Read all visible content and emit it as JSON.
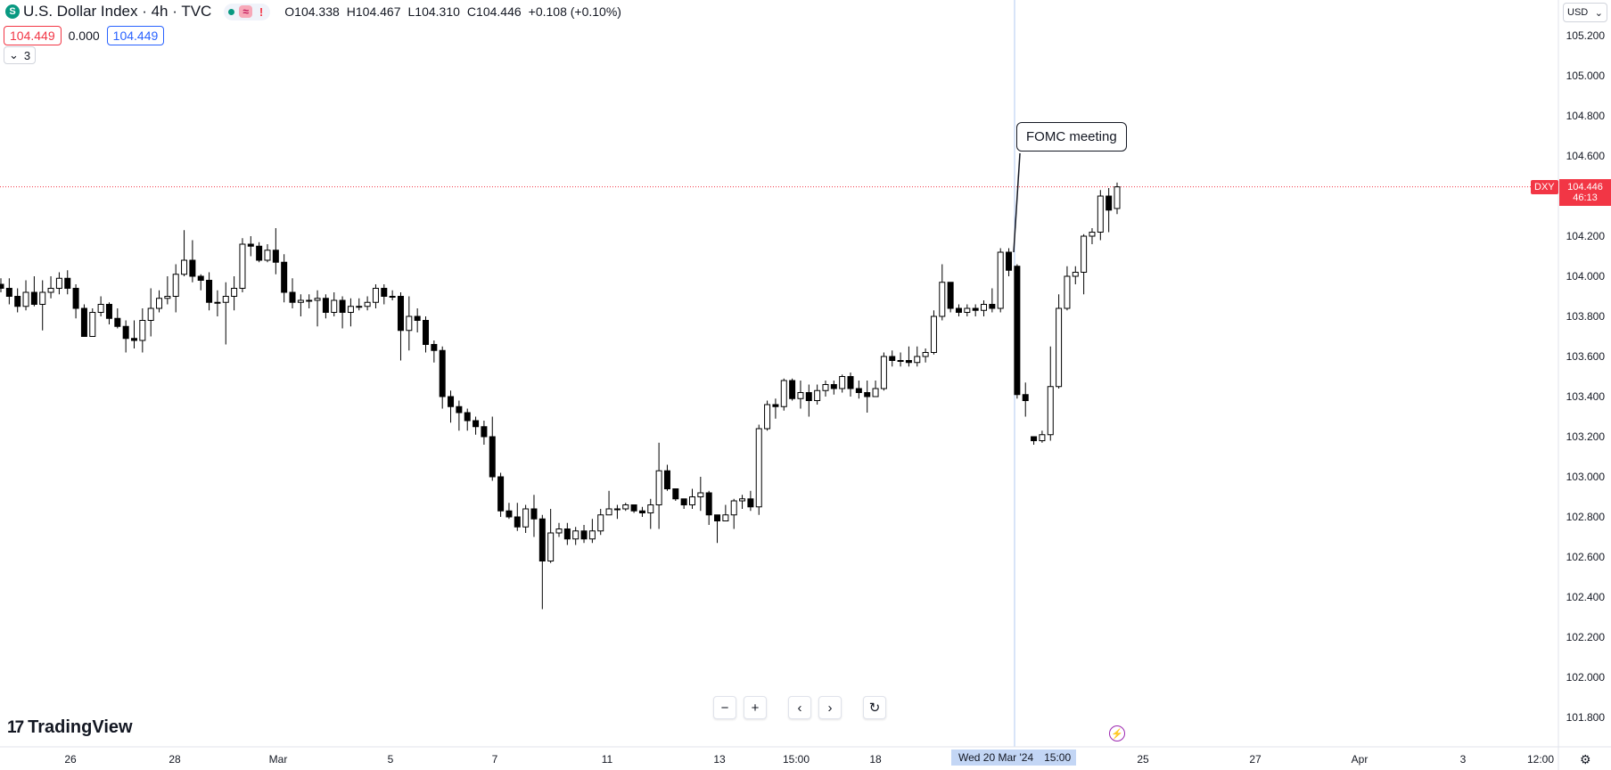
{
  "header": {
    "symbol_icon": "S",
    "title": "U.S. Dollar Index · 4h · TVC",
    "status_icons": [
      "green-dot-icon",
      "wave-icon",
      "exclamation-icon"
    ],
    "wave_glyph": "≈",
    "excl_glyph": "!",
    "ohlc": {
      "o_label": "O",
      "o": "104.338",
      "h_label": "H",
      "h": "104.467",
      "l_label": "L",
      "l": "104.310",
      "c_label": "C",
      "c": "104.446",
      "change": "+0.108 (+0.10%)"
    }
  },
  "price_boxes": {
    "sell": "104.449",
    "spread": "0.000",
    "buy": "104.449"
  },
  "indicators_toggle": {
    "count": "3"
  },
  "currency_select": {
    "value": "USD"
  },
  "annotation": {
    "text": "FOMC meeting"
  },
  "last_price": {
    "symbol": "DXY",
    "value": "104.446",
    "countdown": "46:13"
  },
  "crosshair": {
    "label": "Wed 20 Mar '24",
    "time_overlap": "15:00"
  },
  "branding": {
    "logo_text": "TradingView",
    "logo_mark": "17"
  },
  "navigation": {
    "zoom_out": "−",
    "zoom_in": "+",
    "scroll_left": "‹",
    "scroll_right": "›",
    "reset": "↻"
  },
  "colors": {
    "up_fill": "#ffffff",
    "down_fill": "#000000",
    "last_price_line": "#f23645",
    "crosshair": "#b2c9f0",
    "accent_blue": "#2962ff"
  },
  "chart_data": {
    "type": "candlestick",
    "ylim": [
      101.7,
      105.25
    ],
    "y_ticks": [
      "105.200",
      "105.000",
      "104.800",
      "104.600",
      "104.400",
      "104.200",
      "104.000",
      "103.800",
      "103.600",
      "103.400",
      "103.200",
      "103.000",
      "102.800",
      "102.600",
      "102.400",
      "102.200",
      "102.000",
      "101.800"
    ],
    "x_ticks": [
      "26",
      "28",
      "Mar",
      "5",
      "7",
      "11",
      "13",
      "15:00",
      "18",
      "Wed 20 Mar '24",
      "15:00",
      "25",
      "27",
      "Apr",
      "3",
      "12:00"
    ],
    "last_price": 104.446,
    "candles": [
      [
        103.96,
        103.94,
        103.99,
        103.92
      ],
      [
        103.94,
        103.9,
        103.99,
        103.86
      ],
      [
        103.9,
        103.85,
        103.94,
        103.82
      ],
      [
        103.85,
        103.92,
        103.98,
        103.83
      ],
      [
        103.92,
        103.86,
        104.0,
        103.85
      ],
      [
        103.86,
        103.92,
        103.98,
        103.73
      ],
      [
        103.92,
        103.94,
        104.0,
        103.89
      ],
      [
        103.94,
        103.99,
        104.02,
        103.91
      ],
      [
        103.99,
        103.94,
        104.03,
        103.91
      ],
      [
        103.94,
        103.84,
        103.96,
        103.79
      ],
      [
        103.84,
        103.7,
        103.86,
        103.7
      ],
      [
        103.7,
        103.82,
        103.84,
        103.7
      ],
      [
        103.82,
        103.86,
        103.9,
        103.8
      ],
      [
        103.86,
        103.79,
        103.87,
        103.76
      ],
      [
        103.79,
        103.75,
        103.84,
        103.74
      ],
      [
        103.75,
        103.69,
        103.78,
        103.62
      ],
      [
        103.69,
        103.68,
        103.78,
        103.64
      ],
      [
        103.68,
        103.78,
        103.84,
        103.62
      ],
      [
        103.78,
        103.84,
        103.94,
        103.7
      ],
      [
        103.84,
        103.89,
        103.93,
        103.82
      ],
      [
        103.89,
        103.9,
        104.0,
        103.86
      ],
      [
        103.9,
        104.01,
        104.06,
        103.82
      ],
      [
        104.01,
        104.08,
        104.23,
        104.0
      ],
      [
        104.08,
        104.0,
        104.18,
        103.97
      ],
      [
        104.0,
        103.98,
        104.01,
        103.93
      ],
      [
        103.98,
        103.87,
        104.02,
        103.83
      ],
      [
        103.87,
        103.87,
        103.93,
        103.8
      ],
      [
        103.87,
        103.9,
        103.97,
        103.66
      ],
      [
        103.9,
        103.94,
        104.0,
        103.83
      ],
      [
        103.94,
        104.16,
        104.19,
        103.92
      ],
      [
        104.16,
        104.15,
        104.2,
        104.1
      ],
      [
        104.15,
        104.08,
        104.17,
        104.07
      ],
      [
        104.08,
        104.13,
        104.16,
        104.07
      ],
      [
        104.13,
        104.07,
        104.24,
        104.01
      ],
      [
        104.07,
        103.92,
        104.11,
        103.87
      ],
      [
        103.92,
        103.87,
        103.99,
        103.84
      ],
      [
        103.87,
        103.88,
        103.91,
        103.8
      ],
      [
        103.88,
        103.88,
        103.91,
        103.84
      ],
      [
        103.88,
        103.89,
        103.93,
        103.75
      ],
      [
        103.89,
        103.82,
        103.91,
        103.79
      ],
      [
        103.82,
        103.88,
        103.92,
        103.8
      ],
      [
        103.88,
        103.82,
        103.9,
        103.74
      ],
      [
        103.82,
        103.85,
        103.89,
        103.75
      ],
      [
        103.85,
        103.85,
        103.89,
        103.83
      ],
      [
        103.85,
        103.87,
        103.9,
        103.83
      ],
      [
        103.87,
        103.94,
        103.96,
        103.84
      ],
      [
        103.94,
        103.9,
        103.96,
        103.86
      ],
      [
        103.9,
        103.9,
        103.93,
        103.88
      ],
      [
        103.9,
        103.73,
        103.92,
        103.58
      ],
      [
        103.73,
        103.8,
        103.9,
        103.63
      ],
      [
        103.8,
        103.78,
        103.84,
        103.72
      ],
      [
        103.78,
        103.66,
        103.8,
        103.62
      ],
      [
        103.66,
        103.63,
        103.68,
        103.57
      ],
      [
        103.63,
        103.4,
        103.65,
        103.34
      ],
      [
        103.4,
        103.35,
        103.43,
        103.27
      ],
      [
        103.35,
        103.32,
        103.38,
        103.23
      ],
      [
        103.32,
        103.28,
        103.34,
        103.23
      ],
      [
        103.28,
        103.25,
        103.3,
        103.21
      ],
      [
        103.25,
        103.2,
        103.28,
        103.16
      ],
      [
        103.2,
        103.0,
        103.3,
        102.98
      ],
      [
        103.0,
        102.83,
        103.02,
        102.8
      ],
      [
        102.83,
        102.8,
        102.87,
        102.79
      ],
      [
        102.8,
        102.75,
        102.87,
        102.73
      ],
      [
        102.75,
        102.84,
        102.86,
        102.72
      ],
      [
        102.84,
        102.79,
        102.91,
        102.7
      ],
      [
        102.79,
        102.58,
        102.81,
        102.34
      ],
      [
        102.58,
        102.72,
        102.84,
        102.57
      ],
      [
        102.72,
        102.74,
        102.77,
        102.7
      ],
      [
        102.74,
        102.69,
        102.77,
        102.66
      ],
      [
        102.69,
        102.73,
        102.75,
        102.66
      ],
      [
        102.73,
        102.69,
        102.76,
        102.67
      ],
      [
        102.69,
        102.73,
        102.79,
        102.67
      ],
      [
        102.73,
        102.81,
        102.84,
        102.71
      ],
      [
        102.81,
        102.84,
        102.93,
        102.82
      ],
      [
        102.84,
        102.84,
        102.86,
        102.79
      ],
      [
        102.84,
        102.86,
        102.87,
        102.83
      ],
      [
        102.86,
        102.83,
        102.86,
        102.82
      ],
      [
        102.83,
        102.82,
        102.85,
        102.8
      ],
      [
        102.82,
        102.86,
        102.89,
        102.74
      ],
      [
        102.86,
        103.03,
        103.17,
        102.74
      ],
      [
        103.03,
        102.94,
        103.06,
        102.93
      ],
      [
        102.94,
        102.89,
        102.94,
        102.88
      ],
      [
        102.89,
        102.86,
        102.89,
        102.84
      ],
      [
        102.86,
        102.9,
        102.94,
        102.84
      ],
      [
        102.9,
        102.92,
        103.0,
        102.83
      ],
      [
        102.92,
        102.81,
        102.93,
        102.76
      ],
      [
        102.81,
        102.78,
        102.81,
        102.67
      ],
      [
        102.78,
        102.81,
        102.86,
        102.79
      ],
      [
        102.81,
        102.88,
        102.89,
        102.74
      ],
      [
        102.88,
        102.89,
        102.91,
        102.84
      ],
      [
        102.89,
        102.85,
        102.93,
        102.83
      ],
      [
        102.85,
        103.24,
        103.26,
        102.81
      ],
      [
        103.24,
        103.36,
        103.38,
        103.23
      ],
      [
        103.36,
        103.35,
        103.39,
        103.29
      ],
      [
        103.35,
        103.48,
        103.49,
        103.33
      ],
      [
        103.48,
        103.39,
        103.49,
        103.38
      ],
      [
        103.39,
        103.42,
        103.48,
        103.34
      ],
      [
        103.42,
        103.38,
        103.46,
        103.3
      ],
      [
        103.38,
        103.43,
        103.46,
        103.36
      ],
      [
        103.43,
        103.46,
        103.48,
        103.4
      ],
      [
        103.46,
        103.44,
        103.48,
        103.41
      ],
      [
        103.44,
        103.5,
        103.51,
        103.42
      ],
      [
        103.5,
        103.44,
        103.52,
        103.4
      ],
      [
        103.44,
        103.42,
        103.48,
        103.39
      ],
      [
        103.42,
        103.4,
        103.48,
        103.32
      ],
      [
        103.4,
        103.44,
        103.48,
        103.4
      ],
      [
        103.44,
        103.6,
        103.62,
        103.43
      ],
      [
        103.6,
        103.58,
        103.63,
        103.55
      ],
      [
        103.58,
        103.58,
        103.62,
        103.55
      ],
      [
        103.58,
        103.57,
        103.65,
        103.55
      ],
      [
        103.57,
        103.6,
        103.65,
        103.55
      ],
      [
        103.6,
        103.62,
        103.64,
        103.57
      ],
      [
        103.62,
        103.8,
        103.83,
        103.61
      ],
      [
        103.8,
        103.97,
        104.06,
        103.78
      ],
      [
        103.97,
        103.84,
        103.97,
        103.82
      ],
      [
        103.84,
        103.82,
        103.86,
        103.8
      ],
      [
        103.82,
        103.84,
        103.86,
        103.8
      ],
      [
        103.84,
        103.83,
        103.86,
        103.8
      ],
      [
        103.83,
        103.86,
        103.88,
        103.8
      ],
      [
        103.86,
        103.84,
        103.94,
        103.82
      ],
      [
        103.84,
        104.12,
        104.14,
        103.82
      ],
      [
        104.12,
        104.03,
        104.14,
        104.0
      ],
      [
        104.05,
        103.41,
        104.06,
        103.39
      ],
      [
        103.41,
        103.38,
        103.47,
        103.3
      ],
      [
        103.2,
        103.18,
        103.2,
        103.16
      ],
      [
        103.18,
        103.21,
        103.23,
        103.17
      ],
      [
        103.21,
        103.45,
        103.65,
        103.18
      ],
      [
        103.45,
        103.84,
        103.91,
        103.44
      ],
      [
        103.84,
        104.0,
        104.05,
        103.83
      ],
      [
        104.0,
        104.02,
        104.05,
        103.96
      ],
      [
        104.02,
        104.2,
        104.21,
        103.91
      ],
      [
        104.2,
        104.22,
        104.24,
        104.16
      ],
      [
        104.22,
        104.4,
        104.43,
        104.18
      ],
      [
        104.4,
        104.33,
        104.44,
        104.22
      ],
      [
        104.338,
        104.446,
        104.467,
        104.31
      ]
    ]
  }
}
